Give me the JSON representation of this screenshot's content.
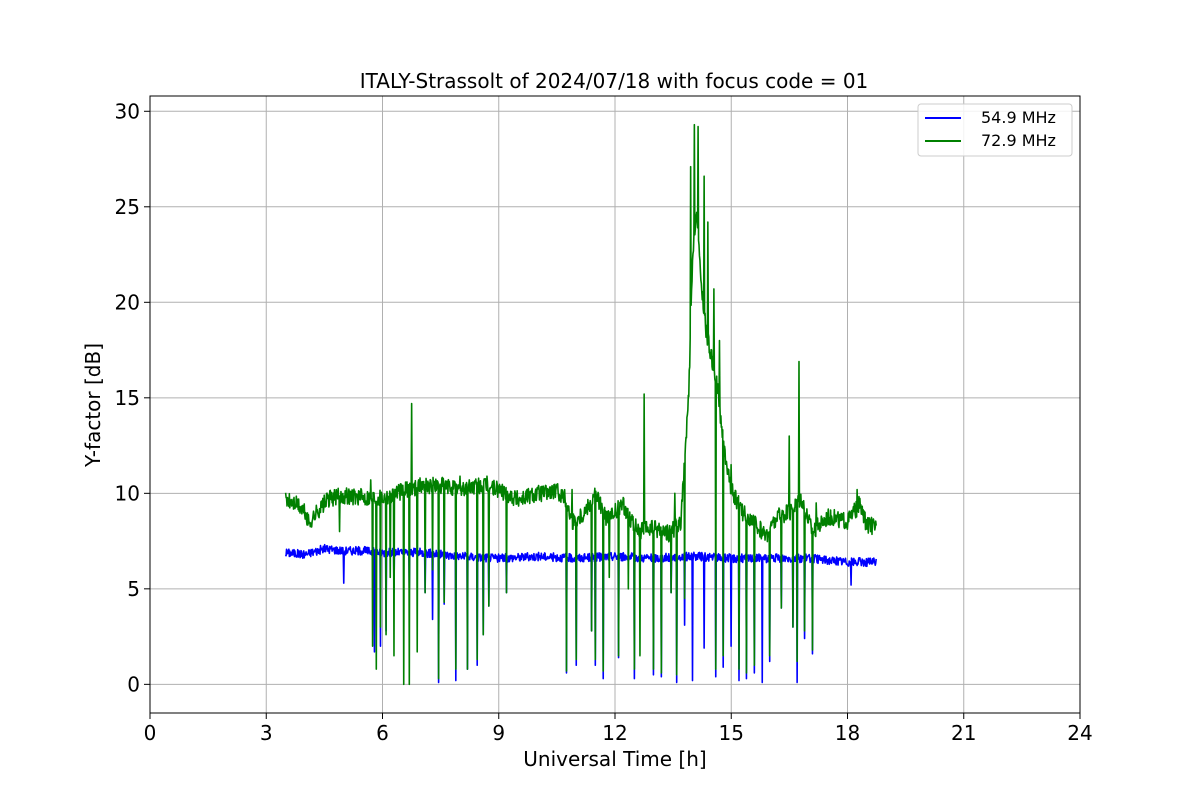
{
  "chart_data": {
    "type": "line",
    "title": "ITALY-Strassolt of 2024/07/18 with focus code = 01",
    "xlabel": "Universal Time [h]",
    "ylabel": "Y-factor [dB]",
    "xlim": [
      0,
      24
    ],
    "ylim": [
      -1.5,
      30.8
    ],
    "xticks": [
      0,
      3,
      6,
      9,
      12,
      15,
      18,
      21,
      24
    ],
    "yticks": [
      0,
      5,
      10,
      15,
      20,
      25,
      30
    ],
    "xtick_labels": [
      "0",
      "3",
      "6",
      "9",
      "12",
      "15",
      "18",
      "21",
      "24"
    ],
    "ytick_labels": [
      "0",
      "5",
      "10",
      "15",
      "20",
      "25",
      "30"
    ],
    "grid": true,
    "legend_position": "top-right",
    "series": [
      {
        "name": "54.9 MHz",
        "color": "#0000ff",
        "x_start": 3.5,
        "x_end": 18.75,
        "baseline": [
          [
            3.5,
            6.9
          ],
          [
            4.0,
            6.8
          ],
          [
            4.5,
            7.1
          ],
          [
            5.0,
            7.0
          ],
          [
            5.5,
            7.0
          ],
          [
            6.0,
            6.9
          ],
          [
            7.0,
            6.9
          ],
          [
            8.0,
            6.7
          ],
          [
            9.0,
            6.6
          ],
          [
            10.0,
            6.7
          ],
          [
            11.0,
            6.6
          ],
          [
            12.0,
            6.7
          ],
          [
            13.0,
            6.6
          ],
          [
            14.0,
            6.7
          ],
          [
            15.0,
            6.6
          ],
          [
            16.0,
            6.6
          ],
          [
            17.0,
            6.6
          ],
          [
            18.0,
            6.4
          ],
          [
            18.75,
            6.4
          ]
        ],
        "dips": [
          [
            5.0,
            5.3
          ],
          [
            5.8,
            1.7
          ],
          [
            5.95,
            2.0
          ],
          [
            6.1,
            2.8
          ],
          [
            6.3,
            4.8
          ],
          [
            6.7,
            5.0
          ],
          [
            7.1,
            4.8
          ],
          [
            7.3,
            3.4
          ],
          [
            7.45,
            0.1
          ],
          [
            7.6,
            4.2
          ],
          [
            7.9,
            0.2
          ],
          [
            8.2,
            0.8
          ],
          [
            8.45,
            1.0
          ],
          [
            8.6,
            2.6
          ],
          [
            8.75,
            4.1
          ],
          [
            9.2,
            4.8
          ],
          [
            10.75,
            0.6
          ],
          [
            11.0,
            1.0
          ],
          [
            11.4,
            2.8
          ],
          [
            11.5,
            1.0
          ],
          [
            11.7,
            0.3
          ],
          [
            12.1,
            1.4
          ],
          [
            12.5,
            0.3
          ],
          [
            13.0,
            0.5
          ],
          [
            13.2,
            0.4
          ],
          [
            13.45,
            4.8
          ],
          [
            13.6,
            0.1
          ],
          [
            13.8,
            3.1
          ],
          [
            14.0,
            0.2
          ],
          [
            14.3,
            1.9
          ],
          [
            14.6,
            0.4
          ],
          [
            14.8,
            0.9
          ],
          [
            15.0,
            2.0
          ],
          [
            15.2,
            0.2
          ],
          [
            15.4,
            0.3
          ],
          [
            15.6,
            0.6
          ],
          [
            15.8,
            0.1
          ],
          [
            16.0,
            1.2
          ],
          [
            16.3,
            4.0
          ],
          [
            16.6,
            3.0
          ],
          [
            16.7,
            0.1
          ],
          [
            16.9,
            2.4
          ],
          [
            17.1,
            1.6
          ],
          [
            18.1,
            5.2
          ]
        ]
      },
      {
        "name": "72.9 MHz",
        "color": "#008000",
        "x_start": 3.5,
        "x_end": 18.75,
        "baseline": [
          [
            3.5,
            9.6
          ],
          [
            3.8,
            9.4
          ],
          [
            4.0,
            9.0
          ],
          [
            4.1,
            8.4
          ],
          [
            4.3,
            9.0
          ],
          [
            4.6,
            9.7
          ],
          [
            5.0,
            9.9
          ],
          [
            5.5,
            9.8
          ],
          [
            6.0,
            9.8
          ],
          [
            6.5,
            10.1
          ],
          [
            7.0,
            10.4
          ],
          [
            7.5,
            10.4
          ],
          [
            8.0,
            10.2
          ],
          [
            8.5,
            10.4
          ],
          [
            9.0,
            10.2
          ],
          [
            9.5,
            9.7
          ],
          [
            10.0,
            10.0
          ],
          [
            10.5,
            10.1
          ],
          [
            10.7,
            9.8
          ],
          [
            10.9,
            8.5
          ],
          [
            11.2,
            9.0
          ],
          [
            11.5,
            10.0
          ],
          [
            11.8,
            8.6
          ],
          [
            12.2,
            9.4
          ],
          [
            12.6,
            8.0
          ],
          [
            13.0,
            8.2
          ],
          [
            13.4,
            7.9
          ],
          [
            13.7,
            8.5
          ],
          [
            13.9,
            15.0
          ],
          [
            14.0,
            22.0
          ],
          [
            14.1,
            25.0
          ],
          [
            14.2,
            21.5
          ],
          [
            14.35,
            18.5
          ],
          [
            14.5,
            17.0
          ],
          [
            14.65,
            15.5
          ],
          [
            14.8,
            12.5
          ],
          [
            15.0,
            10.2
          ],
          [
            15.3,
            9.0
          ],
          [
            15.6,
            8.4
          ],
          [
            15.9,
            7.8
          ],
          [
            16.2,
            8.8
          ],
          [
            16.5,
            9.0
          ],
          [
            16.8,
            9.8
          ],
          [
            17.1,
            8.0
          ],
          [
            17.5,
            8.8
          ],
          [
            18.0,
            8.5
          ],
          [
            18.3,
            9.4
          ],
          [
            18.5,
            8.3
          ],
          [
            18.75,
            8.3
          ]
        ],
        "spikes": [
          [
            5.7,
            10.7
          ],
          [
            6.75,
            14.7
          ],
          [
            8.0,
            10.9
          ],
          [
            8.7,
            10.9
          ],
          [
            10.9,
            10.2
          ],
          [
            12.75,
            15.2
          ],
          [
            13.55,
            10.0
          ],
          [
            13.95,
            27.1
          ],
          [
            14.05,
            29.3
          ],
          [
            14.15,
            29.2
          ],
          [
            14.3,
            26.6
          ],
          [
            14.4,
            24.2
          ],
          [
            14.55,
            20.7
          ],
          [
            14.7,
            18.0
          ],
          [
            15.0,
            11.5
          ],
          [
            16.5,
            13.0
          ],
          [
            16.75,
            16.9
          ],
          [
            17.2,
            9.5
          ],
          [
            18.25,
            10.2
          ]
        ],
        "dips": [
          [
            4.9,
            8.0
          ],
          [
            5.75,
            2.0
          ],
          [
            5.85,
            0.8
          ],
          [
            5.95,
            3.0
          ],
          [
            6.1,
            2.6
          ],
          [
            6.2,
            5.6
          ],
          [
            6.3,
            1.5
          ],
          [
            6.55,
            0.0
          ],
          [
            6.7,
            0.0
          ],
          [
            6.9,
            1.7
          ],
          [
            7.1,
            4.8
          ],
          [
            7.3,
            6.0
          ],
          [
            7.45,
            0.3
          ],
          [
            7.6,
            4.3
          ],
          [
            7.9,
            0.8
          ],
          [
            8.2,
            0.8
          ],
          [
            8.45,
            1.3
          ],
          [
            8.6,
            2.6
          ],
          [
            8.75,
            4.1
          ],
          [
            9.2,
            4.8
          ],
          [
            10.75,
            0.7
          ],
          [
            11.0,
            1.3
          ],
          [
            11.4,
            2.8
          ],
          [
            11.5,
            1.3
          ],
          [
            11.7,
            0.7
          ],
          [
            11.85,
            5.6
          ],
          [
            12.1,
            1.5
          ],
          [
            12.35,
            5.0
          ],
          [
            12.5,
            0.8
          ],
          [
            12.65,
            1.5
          ],
          [
            13.0,
            0.8
          ],
          [
            13.2,
            0.6
          ],
          [
            13.45,
            4.8
          ],
          [
            13.6,
            0.5
          ],
          [
            13.8,
            4.5
          ],
          [
            14.3,
            2.8
          ],
          [
            14.6,
            0.8
          ],
          [
            14.8,
            1.5
          ],
          [
            15.0,
            2.3
          ],
          [
            15.2,
            0.8
          ],
          [
            15.4,
            0.6
          ],
          [
            15.6,
            1.0
          ],
          [
            16.0,
            1.5
          ],
          [
            16.3,
            4.0
          ],
          [
            16.6,
            3.0
          ],
          [
            16.7,
            1.2
          ],
          [
            16.9,
            2.8
          ],
          [
            17.1,
            1.8
          ]
        ]
      }
    ]
  }
}
